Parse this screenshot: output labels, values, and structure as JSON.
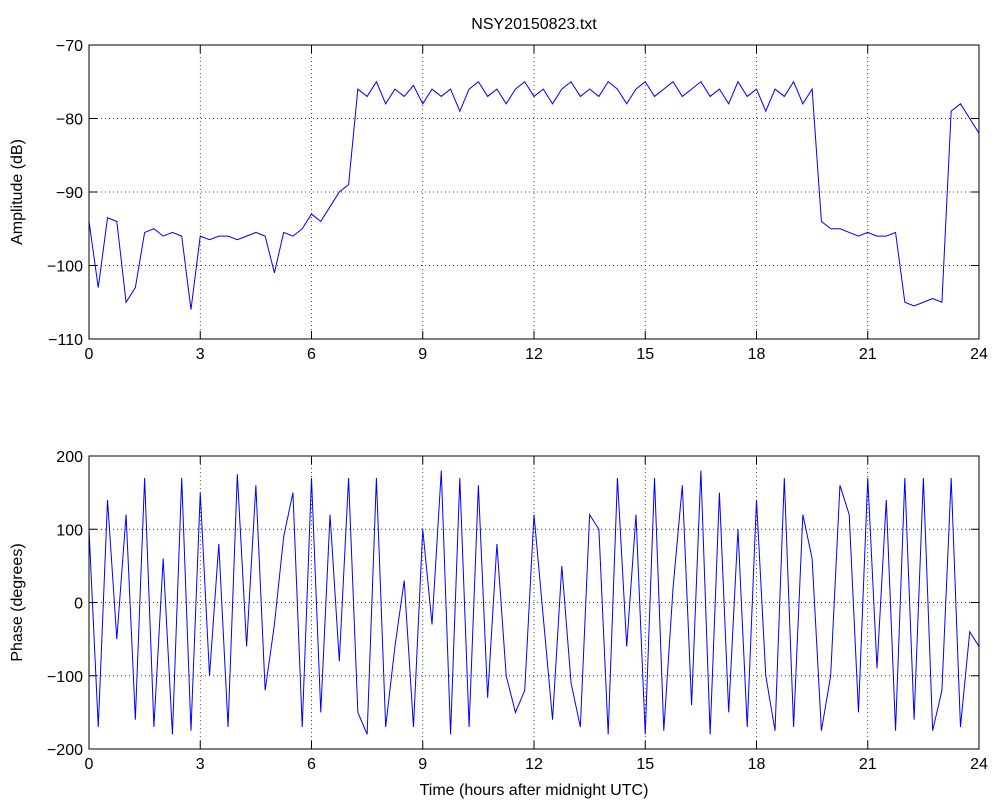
{
  "chart_data": [
    {
      "type": "line",
      "title": "NSY20150823.txt",
      "ylabel": "Amplitude (dB)",
      "color": "#0000ff",
      "grid": true,
      "xlim": [
        0,
        24
      ],
      "xticks": [
        0,
        3,
        6,
        9,
        12,
        15,
        18,
        21,
        24
      ],
      "ylim": [
        -110,
        -70
      ],
      "yticks": [
        {
          "value": -110,
          "label": "−110"
        },
        {
          "value": -100,
          "label": "−100"
        },
        {
          "value": -90,
          "label": "−90"
        },
        {
          "value": -80,
          "label": "−80"
        },
        {
          "value": -70,
          "label": "−70"
        }
      ],
      "x": [
        0,
        0.25,
        0.5,
        0.75,
        1,
        1.25,
        1.5,
        1.75,
        2,
        2.25,
        2.5,
        2.75,
        3,
        3.25,
        3.5,
        3.75,
        4,
        4.25,
        4.5,
        4.75,
        5,
        5.25,
        5.5,
        5.75,
        6,
        6.25,
        6.5,
        6.75,
        7,
        7.25,
        7.5,
        7.75,
        8,
        8.25,
        8.5,
        8.75,
        9,
        9.25,
        9.5,
        9.75,
        10,
        10.25,
        10.5,
        10.75,
        11,
        11.25,
        11.5,
        11.75,
        12,
        12.25,
        12.5,
        12.75,
        13,
        13.25,
        13.5,
        13.75,
        14,
        14.25,
        14.5,
        14.75,
        15,
        15.25,
        15.5,
        15.75,
        16,
        16.25,
        16.5,
        16.75,
        17,
        17.25,
        17.5,
        17.75,
        18,
        18.25,
        18.5,
        18.75,
        19,
        19.25,
        19.5,
        19.75,
        20,
        20.25,
        20.5,
        20.75,
        21,
        21.25,
        21.5,
        21.75,
        22,
        22.25,
        22.5,
        22.75,
        23,
        23.25,
        23.5,
        23.75,
        24
      ],
      "values": [
        -94,
        -103,
        -93.5,
        -94,
        -105,
        -103,
        -95.5,
        -95,
        -96,
        -95.5,
        -96,
        -106,
        -96,
        -96.5,
        -96,
        -96,
        -96.5,
        -96,
        -95.5,
        -96,
        -101,
        -95.5,
        -96,
        -95,
        -93,
        -94,
        -92,
        -90,
        -89,
        -76,
        -77,
        -75,
        -78,
        -76,
        -77,
        -75.5,
        -78,
        -76,
        -77,
        -76,
        -79,
        -76,
        -75,
        -77,
        -76,
        -78,
        -76,
        -75,
        -77,
        -76,
        -78,
        -76,
        -75,
        -77,
        -76,
        -77,
        -75,
        -76,
        -78,
        -76,
        -75,
        -77,
        -76,
        -75,
        -77,
        -76,
        -75,
        -77,
        -76,
        -78,
        -75,
        -77,
        -76,
        -79,
        -76,
        -77,
        -75,
        -78,
        -76,
        -94,
        -95,
        -95,
        -95.5,
        -96,
        -95.5,
        -96,
        -96,
        -95.5,
        -105,
        -105.5,
        -105,
        -104.5,
        -105,
        -79,
        -78,
        -80,
        -82
      ]
    },
    {
      "type": "line",
      "ylabel": "Phase (degrees)",
      "xlabel": "Time (hours after midnight UTC)",
      "color": "#0000ff",
      "grid": true,
      "xlim": [
        0,
        24
      ],
      "xticks": [
        0,
        3,
        6,
        9,
        12,
        15,
        18,
        21,
        24
      ],
      "ylim": [
        -200,
        200
      ],
      "yticks": [
        {
          "value": -200,
          "label": "−200"
        },
        {
          "value": -100,
          "label": "−100"
        },
        0,
        100,
        200
      ],
      "x": [
        0,
        0.25,
        0.5,
        0.75,
        1,
        1.25,
        1.5,
        1.75,
        2,
        2.25,
        2.5,
        2.75,
        3,
        3.25,
        3.5,
        3.75,
        4,
        4.25,
        4.5,
        4.75,
        5,
        5.25,
        5.5,
        5.75,
        6,
        6.25,
        6.5,
        6.75,
        7,
        7.25,
        7.5,
        7.75,
        8,
        8.25,
        8.5,
        8.75,
        9,
        9.25,
        9.5,
        9.75,
        10,
        10.25,
        10.5,
        10.75,
        11,
        11.25,
        11.5,
        11.75,
        12,
        12.25,
        12.5,
        12.75,
        13,
        13.25,
        13.5,
        13.75,
        14,
        14.25,
        14.5,
        14.75,
        15,
        15.25,
        15.5,
        15.75,
        16,
        16.25,
        16.5,
        16.75,
        17,
        17.25,
        17.5,
        17.75,
        18,
        18.25,
        18.5,
        18.75,
        19,
        19.25,
        19.5,
        19.75,
        20,
        20.25,
        20.5,
        20.75,
        21,
        21.25,
        21.5,
        21.75,
        22,
        22.25,
        22.5,
        22.75,
        23,
        23.25,
        23.5,
        23.75,
        24
      ],
      "values": [
        100,
        -170,
        140,
        -50,
        120,
        -160,
        170,
        -170,
        60,
        -180,
        170,
        -175,
        150,
        -100,
        80,
        -170,
        175,
        -60,
        160,
        -120,
        -30,
        90,
        150,
        -170,
        170,
        -150,
        120,
        -80,
        170,
        -150,
        -180,
        170,
        -170,
        -60,
        30,
        -170,
        100,
        -30,
        180,
        -180,
        170,
        -170,
        160,
        -130,
        80,
        -100,
        -150,
        -120,
        120,
        -20,
        -160,
        50,
        -110,
        -170,
        120,
        100,
        -180,
        170,
        -60,
        120,
        -180,
        170,
        -175,
        20,
        160,
        -140,
        180,
        -180,
        150,
        -150,
        100,
        -170,
        140,
        -100,
        -175,
        170,
        -170,
        120,
        60,
        -175,
        -100,
        160,
        120,
        -150,
        170,
        -90,
        140,
        -175,
        170,
        -160,
        170,
        -175,
        -120,
        170,
        -170,
        -40,
        -60
      ]
    }
  ]
}
